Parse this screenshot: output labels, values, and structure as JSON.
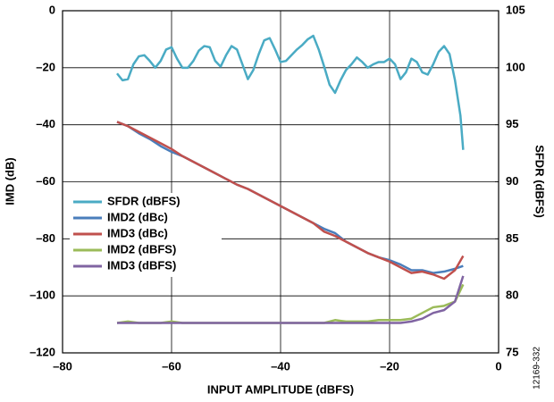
{
  "chart_data": {
    "type": "line",
    "x_label": "INPUT AMPLITUDE (dBFS)",
    "y_label": "IMD (dB)",
    "y2_label": "SFDR (dBFS)",
    "figure_id": "12169-332",
    "xlim": [
      -80,
      0
    ],
    "xticks": [
      {
        "value": -80,
        "label": "–80"
      },
      {
        "value": -60,
        "label": "–60"
      },
      {
        "value": -40,
        "label": "–40"
      },
      {
        "value": -20,
        "label": "–20"
      },
      0
    ],
    "ylim": [
      -120,
      0
    ],
    "yticks": [
      0,
      {
        "value": -20,
        "label": "–20"
      },
      {
        "value": -40,
        "label": "–40"
      },
      {
        "value": -60,
        "label": "–60"
      },
      {
        "value": -80,
        "label": "–80"
      },
      {
        "value": -100,
        "label": "–100"
      },
      {
        "value": -120,
        "label": "–120"
      }
    ],
    "y2lim": [
      75,
      105
    ],
    "y2ticks": [
      105,
      100,
      95,
      90,
      85,
      80,
      75
    ],
    "grid": true,
    "legend": "left",
    "series": [
      {
        "name": "SFDR (dBFS)",
        "color": "#4aabc4",
        "axis": "y2",
        "x": [
          -70,
          -69,
          -68,
          -67,
          -66,
          -65,
          -64,
          -63,
          -62,
          -61,
          -60,
          -59,
          -58,
          -57,
          -56,
          -55,
          -54,
          -53,
          -52,
          -51,
          -50,
          -49,
          -48,
          -47,
          -46,
          -45,
          -44,
          -43,
          -42,
          -41,
          -40,
          -39,
          -38,
          -37,
          -36,
          -35,
          -34,
          -33,
          -32,
          -31,
          -30,
          -29,
          -28,
          -27,
          -26,
          -25,
          -24,
          -23,
          -22,
          -21,
          -20,
          -19,
          -18,
          -17,
          -16,
          -15,
          -14,
          -13,
          -12,
          -11,
          -10,
          -9,
          -8,
          -7,
          -6.5
        ],
        "values": [
          99.5,
          98.9,
          99.0,
          100.3,
          101.0,
          101.1,
          100.6,
          100.0,
          100.6,
          101.6,
          101.8,
          100.8,
          100.0,
          100.0,
          100.6,
          101.5,
          101.9,
          101.8,
          100.6,
          100.1,
          101.1,
          101.9,
          101.6,
          100.3,
          99.0,
          99.8,
          101.2,
          102.4,
          102.6,
          101.6,
          100.5,
          100.6,
          101.1,
          101.6,
          102.0,
          102.5,
          102.8,
          101.6,
          100.1,
          98.5,
          97.8,
          98.9,
          99.8,
          100.3,
          100.9,
          100.5,
          100.0,
          100.3,
          100.5,
          100.5,
          100.8,
          100.3,
          99.0,
          99.6,
          100.8,
          100.5,
          99.6,
          99.4,
          100.3,
          101.4,
          101.9,
          101.2,
          98.9,
          95.8,
          92.8
        ]
      },
      {
        "name": "IMD2 (dBc)",
        "color": "#4a7ebb",
        "x": [
          -70,
          -68,
          -66,
          -64,
          -62,
          -60,
          -58,
          -56,
          -54,
          -52,
          -50,
          -48,
          -46,
          -44,
          -42,
          -40,
          -38,
          -36,
          -34,
          -32,
          -30,
          -28,
          -26,
          -24,
          -22,
          -20,
          -18,
          -16,
          -14,
          -12,
          -10,
          -8,
          -6.5
        ],
        "values": [
          -39,
          -40.5,
          -43,
          -45,
          -47.5,
          -49.5,
          -51,
          -53,
          -55,
          -57,
          -59,
          -61,
          -62.5,
          -64.5,
          -66.5,
          -68.5,
          -70.5,
          -72.5,
          -74.5,
          -76.5,
          -78,
          -81,
          -83,
          -85,
          -86.5,
          -87.5,
          -89,
          -91,
          -91,
          -92,
          -91.5,
          -90.5,
          -89.5
        ]
      },
      {
        "name": "IMD3 (dBc)",
        "color": "#c0504d",
        "x": [
          -70,
          -68,
          -66,
          -64,
          -62,
          -60,
          -58,
          -56,
          -54,
          -52,
          -50,
          -48,
          -46,
          -44,
          -42,
          -40,
          -38,
          -36,
          -34,
          -32,
          -30,
          -28,
          -26,
          -24,
          -22,
          -20,
          -18,
          -16,
          -14,
          -12,
          -10,
          -8,
          -6.5
        ],
        "values": [
          -39,
          -40.5,
          -42.5,
          -44.5,
          -46.5,
          -48.5,
          -51,
          -53,
          -55,
          -57,
          -59,
          -61,
          -62.5,
          -64.5,
          -66.5,
          -68.5,
          -70.5,
          -72.5,
          -74.5,
          -77.5,
          -79,
          -81,
          -83,
          -85,
          -86.5,
          -88,
          -90,
          -92,
          -91.5,
          -92.5,
          -94,
          -91,
          -86
        ]
      },
      {
        "name": "IMD2 (dBFS)",
        "color": "#9bbb59",
        "x": [
          -70,
          -68,
          -66,
          -64,
          -62,
          -60,
          -58,
          -56,
          -54,
          -52,
          -50,
          -48,
          -46,
          -44,
          -42,
          -40,
          -38,
          -36,
          -34,
          -32,
          -30,
          -28,
          -26,
          -24,
          -22,
          -20,
          -18,
          -16,
          -14,
          -12,
          -10,
          -8,
          -6.5
        ],
        "values": [
          -109.5,
          -109,
          -109.5,
          -109.5,
          -109.5,
          -109,
          -109.5,
          -109.5,
          -109.5,
          -109.5,
          -109.5,
          -109.5,
          -109.5,
          -109.5,
          -109.5,
          -109.5,
          -109.5,
          -109.5,
          -109.5,
          -109.5,
          -108.5,
          -109,
          -109,
          -109,
          -108.5,
          -108.5,
          -108.5,
          -108,
          -106,
          -104,
          -103.5,
          -102,
          -96
        ]
      },
      {
        "name": "IMD3 (dBFS)",
        "color": "#8064a2",
        "x": [
          -70,
          -68,
          -66,
          -64,
          -62,
          -60,
          -58,
          -56,
          -54,
          -52,
          -50,
          -48,
          -46,
          -44,
          -42,
          -40,
          -38,
          -36,
          -34,
          -32,
          -30,
          -28,
          -26,
          -24,
          -22,
          -20,
          -18,
          -16,
          -14,
          -12,
          -10,
          -8,
          -6.5
        ],
        "values": [
          -109.5,
          -109.5,
          -109.5,
          -109.5,
          -109.5,
          -109.5,
          -109.5,
          -109.5,
          -109.5,
          -109.5,
          -109.5,
          -109.5,
          -109.5,
          -109.5,
          -109.5,
          -109.5,
          -109.5,
          -109.5,
          -109.5,
          -109.5,
          -109.5,
          -109.5,
          -109.5,
          -109.5,
          -109.5,
          -109.5,
          -109.5,
          -109,
          -108,
          -106,
          -105,
          -102,
          -93
        ]
      }
    ]
  }
}
